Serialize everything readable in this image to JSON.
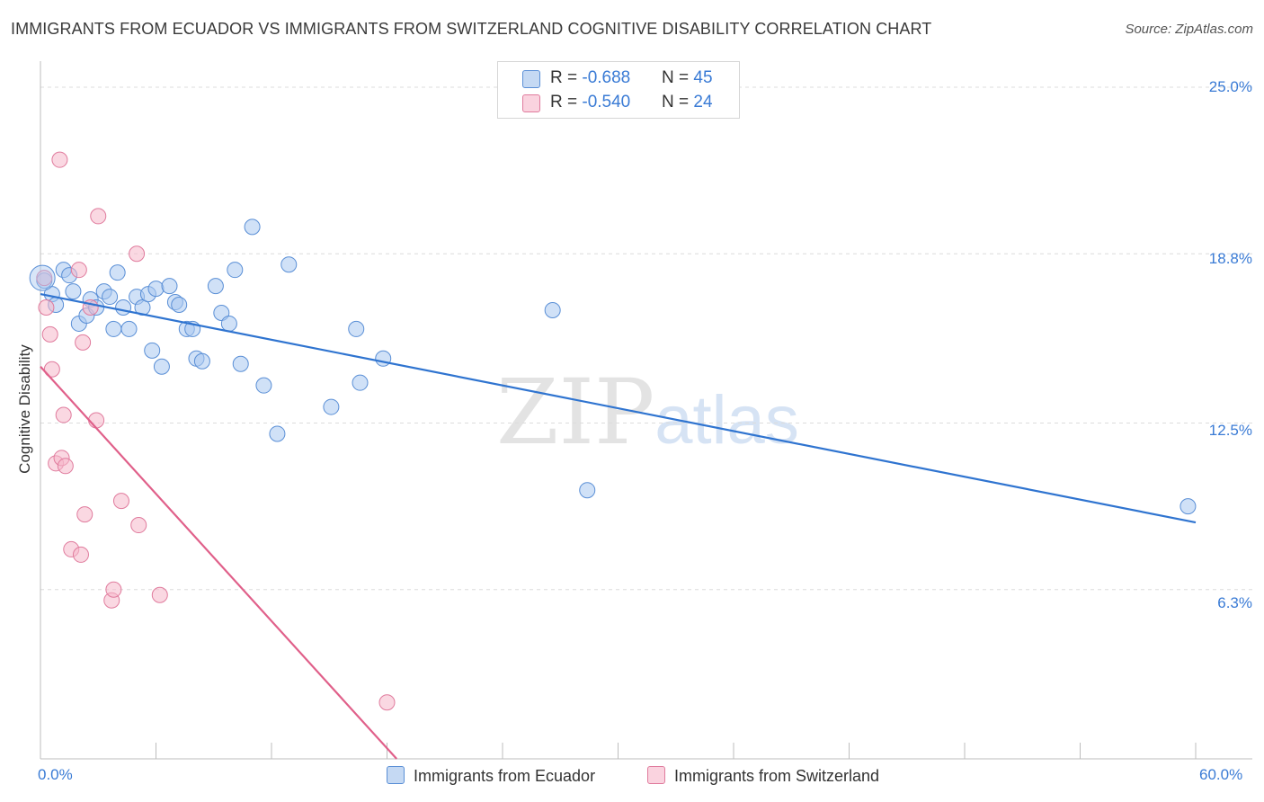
{
  "header": {
    "title": "IMMIGRANTS FROM ECUADOR VS IMMIGRANTS FROM SWITZERLAND COGNITIVE DISABILITY CORRELATION CHART",
    "source": "Source: ZipAtlas.com"
  },
  "watermark": {
    "part1": "ZIP",
    "part2": "atlas"
  },
  "legend_top": [
    {
      "r_label": "R = ",
      "r_value": "-0.688",
      "n_label": "N = ",
      "n_value": "45",
      "color": "#a9c8f0"
    },
    {
      "r_label": "R = ",
      "r_value": "-0.540",
      "n_label": "N = ",
      "n_value": "24",
      "color": "#f5b8cb"
    }
  ],
  "legend_bottom": [
    {
      "label": "Immigrants from Ecuador",
      "color": "#a9c8f0"
    },
    {
      "label": "Immigrants from Switzerland",
      "color": "#f5b8cb"
    }
  ],
  "chart_data": {
    "type": "scatter",
    "title": "IMMIGRANTS FROM ECUADOR VS IMMIGRANTS FROM SWITZERLAND COGNITIVE DISABILITY CORRELATION CHART",
    "xlabel": "",
    "ylabel": "Cognitive Disability",
    "xlim": [
      0,
      60
    ],
    "ylim": [
      0,
      25.0
    ],
    "x_tick_labels": [
      "0.0%",
      "60.0%"
    ],
    "y_ticks": [
      6.3,
      12.5,
      18.8,
      25.0
    ],
    "y_tick_labels": [
      "6.3%",
      "12.5%",
      "18.8%",
      "25.0%"
    ],
    "grid": true,
    "legend_position": "top-center",
    "series": [
      {
        "name": "Immigrants from Ecuador",
        "color": "#a9c8f0",
        "edge": "#5a8fd6",
        "trend_color": "#2f74d0",
        "trend": {
          "x": [
            0.0,
            60.0
          ],
          "y": [
            17.3,
            8.8
          ]
        },
        "points": [
          [
            0.2,
            17.8
          ],
          [
            0.6,
            17.3
          ],
          [
            0.8,
            16.9
          ],
          [
            1.2,
            18.2
          ],
          [
            1.5,
            18.0
          ],
          [
            1.7,
            17.4
          ],
          [
            2.0,
            16.2
          ],
          [
            2.4,
            16.5
          ],
          [
            2.6,
            17.1
          ],
          [
            2.9,
            16.8
          ],
          [
            3.3,
            17.4
          ],
          [
            3.6,
            17.2
          ],
          [
            3.8,
            16.0
          ],
          [
            4.0,
            18.1
          ],
          [
            4.3,
            16.8
          ],
          [
            4.6,
            16.0
          ],
          [
            5.0,
            17.2
          ],
          [
            5.3,
            16.8
          ],
          [
            5.6,
            17.3
          ],
          [
            5.8,
            15.2
          ],
          [
            6.0,
            17.5
          ],
          [
            6.3,
            14.6
          ],
          [
            6.7,
            17.6
          ],
          [
            7.0,
            17.0
          ],
          [
            7.2,
            16.9
          ],
          [
            7.6,
            16.0
          ],
          [
            7.9,
            16.0
          ],
          [
            8.1,
            14.9
          ],
          [
            8.4,
            14.8
          ],
          [
            9.1,
            17.6
          ],
          [
            9.4,
            16.6
          ],
          [
            9.8,
            16.2
          ],
          [
            10.1,
            18.2
          ],
          [
            10.4,
            14.7
          ],
          [
            11.0,
            19.8
          ],
          [
            11.6,
            13.9
          ],
          [
            12.3,
            12.1
          ],
          [
            12.9,
            18.4
          ],
          [
            15.1,
            13.1
          ],
          [
            16.4,
            16.0
          ],
          [
            16.6,
            14.0
          ],
          [
            17.8,
            14.9
          ],
          [
            26.6,
            16.7
          ],
          [
            28.4,
            10.0
          ],
          [
            59.6,
            9.4
          ]
        ]
      },
      {
        "name": "Immigrants from Switzerland",
        "color": "#f5b8cb",
        "edge": "#e07b9d",
        "trend_color": "#e0608a",
        "trend": {
          "x": [
            0.0,
            18.5
          ],
          "y": [
            14.6,
            0.0
          ]
        },
        "points": [
          [
            0.2,
            17.9
          ],
          [
            0.3,
            16.8
          ],
          [
            0.5,
            15.8
          ],
          [
            0.6,
            14.5
          ],
          [
            0.8,
            11.0
          ],
          [
            1.0,
            22.3
          ],
          [
            1.1,
            11.2
          ],
          [
            1.2,
            12.8
          ],
          [
            1.3,
            10.9
          ],
          [
            1.6,
            7.8
          ],
          [
            2.0,
            18.2
          ],
          [
            2.1,
            7.6
          ],
          [
            2.3,
            9.1
          ],
          [
            2.6,
            16.8
          ],
          [
            2.9,
            12.6
          ],
          [
            3.0,
            20.2
          ],
          [
            3.7,
            5.9
          ],
          [
            3.8,
            6.3
          ],
          [
            4.2,
            9.6
          ],
          [
            5.0,
            18.8
          ],
          [
            5.1,
            8.7
          ],
          [
            6.2,
            6.1
          ],
          [
            18.0,
            2.1
          ],
          [
            2.2,
            15.5
          ]
        ]
      }
    ]
  }
}
